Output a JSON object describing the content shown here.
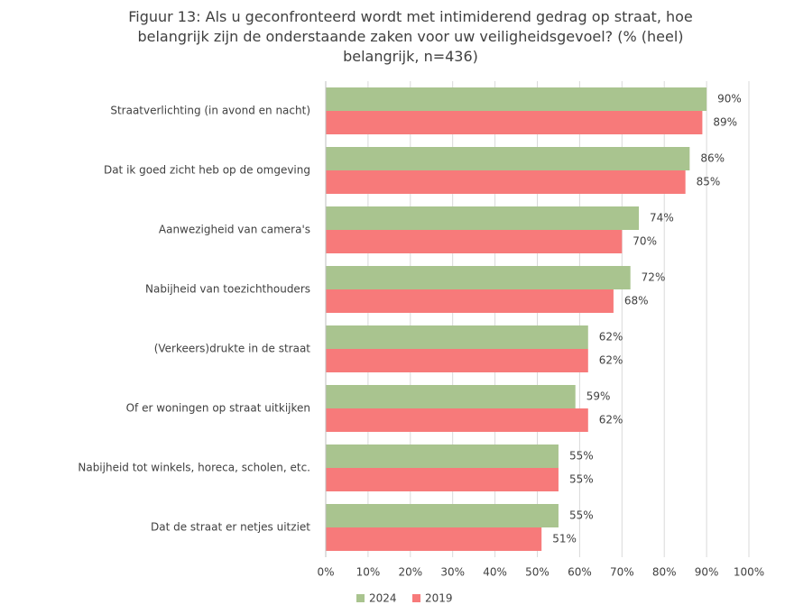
{
  "chart_data": {
    "type": "barh",
    "title": "Figuur 13: Als u geconfronteerd wordt met intimiderend gedrag op straat, hoe belangrijk zijn de onderstaande zaken voor uw veiligheidsgevoel? (% (heel) belangrijk, n=436)",
    "categories": [
      "Straatverlichting (in avond en nacht)",
      "Dat ik goed zicht heb op de omgeving",
      "Aanwezigheid van camera's",
      "Nabijheid van toezichthouders",
      "(Verkeers)drukte in de straat",
      "Of er woningen op straat uitkijken",
      "Nabijheid tot winkels, horeca, scholen, etc.",
      "Dat de straat er netjes uitziet"
    ],
    "series": [
      {
        "name": "2024",
        "color": "#a9c48f",
        "values": [
          90,
          86,
          74,
          72,
          62,
          59,
          55,
          55
        ],
        "value_labels": [
          "90%",
          "86%",
          "74%",
          "72%",
          "62%",
          "59%",
          "55%",
          "55%"
        ]
      },
      {
        "name": "2019",
        "color": "#f77a7a",
        "values": [
          89,
          85,
          70,
          68,
          62,
          62,
          55,
          51
        ],
        "value_labels": [
          "89%",
          "85%",
          "70%",
          "68%",
          "62%",
          "62%",
          "55%",
          "51%"
        ]
      }
    ],
    "xlim": [
      0,
      100
    ],
    "xticks": [
      {
        "value": 0,
        "label": "0%"
      },
      {
        "value": 10,
        "label": "10%"
      },
      {
        "value": 20,
        "label": "20%"
      },
      {
        "value": 30,
        "label": "30%"
      },
      {
        "value": 40,
        "label": "40%"
      },
      {
        "value": 50,
        "label": "50%"
      },
      {
        "value": 60,
        "label": "60%"
      },
      {
        "value": 70,
        "label": "70%"
      },
      {
        "value": 80,
        "label": "80%"
      },
      {
        "value": 90,
        "label": "90%"
      },
      {
        "value": 100,
        "label": "100%"
      }
    ],
    "grid": true,
    "legend": "bottom"
  }
}
